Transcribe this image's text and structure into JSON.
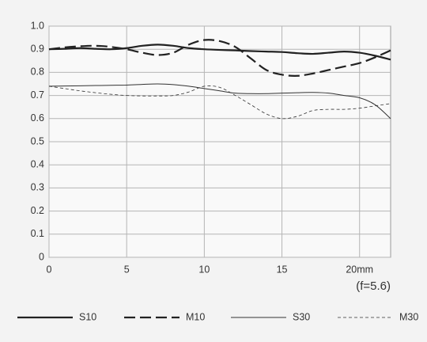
{
  "chart_data": {
    "type": "line",
    "annotation": "(f=5.6)",
    "x": [
      0,
      1,
      2,
      3,
      4,
      5,
      6,
      7,
      8,
      9,
      10,
      11,
      12,
      13,
      14,
      15,
      16,
      17,
      18,
      19,
      20,
      21,
      22
    ],
    "xlim": [
      0,
      22
    ],
    "xticks": [
      0,
      5,
      10,
      15,
      {
        "value": 20,
        "label": "20mm"
      }
    ],
    "ylim": [
      0,
      1
    ],
    "yticks": [
      0,
      0.1,
      0.2,
      0.3,
      0.4,
      0.5,
      0.6,
      0.7,
      0.8,
      0.9,
      {
        "value": 1,
        "label": "1.0"
      }
    ],
    "grid": true,
    "legend": "bottom",
    "series": [
      {
        "name": "S10",
        "color": "#222222",
        "width": 2.2,
        "dash": "solid",
        "values": [
          0.9,
          0.902,
          0.905,
          0.902,
          0.9,
          0.905,
          0.915,
          0.92,
          0.915,
          0.905,
          0.9,
          0.897,
          0.895,
          0.892,
          0.89,
          0.888,
          0.883,
          0.88,
          0.885,
          0.89,
          0.885,
          0.872,
          0.855
        ]
      },
      {
        "name": "M10",
        "color": "#222222",
        "width": 2.2,
        "dash": "dashed",
        "values": [
          0.9,
          0.908,
          0.913,
          0.915,
          0.91,
          0.9,
          0.885,
          0.875,
          0.885,
          0.92,
          0.94,
          0.935,
          0.91,
          0.86,
          0.81,
          0.79,
          0.785,
          0.795,
          0.81,
          0.825,
          0.84,
          0.865,
          0.895
        ]
      },
      {
        "name": "S30",
        "color": "#333333",
        "width": 1,
        "dash": "solid",
        "values": [
          0.74,
          0.741,
          0.742,
          0.743,
          0.744,
          0.745,
          0.748,
          0.75,
          0.747,
          0.74,
          0.73,
          0.72,
          0.71,
          0.708,
          0.708,
          0.71,
          0.712,
          0.713,
          0.71,
          0.7,
          0.69,
          0.66,
          0.6
        ]
      },
      {
        "name": "M30",
        "color": "#333333",
        "width": 0.8,
        "dash": "dotted",
        "values": [
          0.74,
          0.73,
          0.72,
          0.712,
          0.705,
          0.7,
          0.698,
          0.698,
          0.7,
          0.715,
          0.74,
          0.735,
          0.7,
          0.66,
          0.62,
          0.6,
          0.61,
          0.635,
          0.64,
          0.64,
          0.645,
          0.655,
          0.665
        ]
      }
    ]
  }
}
